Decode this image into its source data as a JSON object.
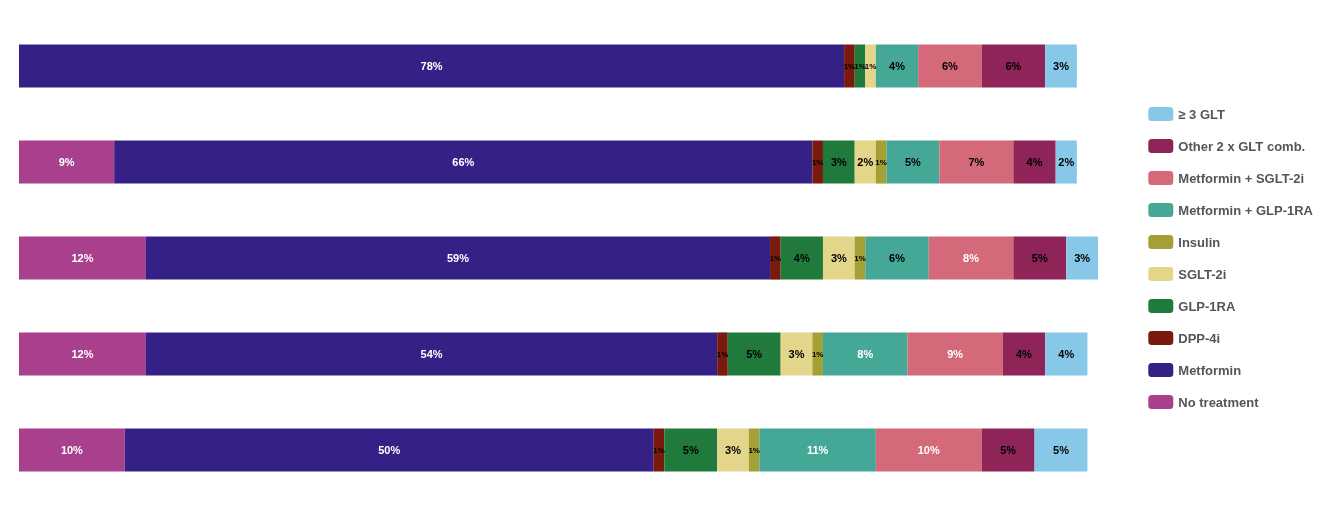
{
  "chart_data": {
    "type": "bar",
    "stacked": true,
    "orientation": "horizontal",
    "categories": [
      null,
      null,
      null,
      null,
      null
    ],
    "legend": "right",
    "series": [
      {
        "name": "No treatment",
        "color": "#a8408e",
        "values": [
          null,
          9,
          12,
          12,
          10
        ],
        "value_labels": [
          null,
          "9%",
          "12%",
          "12%",
          "10%"
        ]
      },
      {
        "name": "Metformin",
        "color": "#352085",
        "values": [
          78,
          66,
          59,
          54,
          50
        ],
        "value_labels": [
          "78%",
          "66%",
          "59%",
          "54%",
          "50%"
        ]
      },
      {
        "name": "DPP-4i",
        "color": "#7a1a0c",
        "values": [
          1,
          1,
          1,
          1,
          1
        ],
        "value_labels": [
          "1%",
          "1%",
          "1%",
          "1%",
          "1%"
        ]
      },
      {
        "name": "GLP-1RA",
        "color": "#1f7a3c",
        "values": [
          1,
          3,
          4,
          5,
          5
        ],
        "value_labels": [
          "1%",
          "3%",
          "4%",
          "5%",
          "5%"
        ]
      },
      {
        "name": "SGLT-2i",
        "color": "#e3d58a",
        "values": [
          1,
          2,
          3,
          3,
          3
        ],
        "value_labels": [
          "1%",
          "2%",
          "3%",
          "3%",
          "3%"
        ]
      },
      {
        "name": "Insulin",
        "color": "#a5a035",
        "values": [
          null,
          1,
          1,
          1,
          1
        ],
        "value_labels": [
          null,
          "1%",
          "1%",
          "1%",
          "1%"
        ]
      },
      {
        "name": "Metformin + GLP-1RA",
        "color": "#45a897",
        "values": [
          4,
          5,
          6,
          8,
          11
        ],
        "value_labels": [
          "4%",
          "5%",
          "6%",
          "8%",
          "11%"
        ]
      },
      {
        "name": "Metformin + SGLT-2i",
        "color": "#d4697a",
        "values": [
          6,
          7,
          8,
          9,
          10
        ],
        "value_labels": [
          "6%",
          "7%",
          "8%",
          "9%",
          "10%"
        ]
      },
      {
        "name": "Other 2 x GLT comb.",
        "color": "#8e2458",
        "values": [
          6,
          4,
          5,
          4,
          5
        ],
        "value_labels": [
          "6%",
          "4%",
          "5%",
          "4%",
          "5%"
        ]
      },
      {
        "name": "≥ 3 GLT",
        "color": "#87c8e8",
        "values": [
          3,
          2,
          3,
          4,
          5
        ],
        "value_labels": [
          "3%",
          "2%",
          "3%",
          "4%",
          "5%"
        ]
      }
    ]
  }
}
